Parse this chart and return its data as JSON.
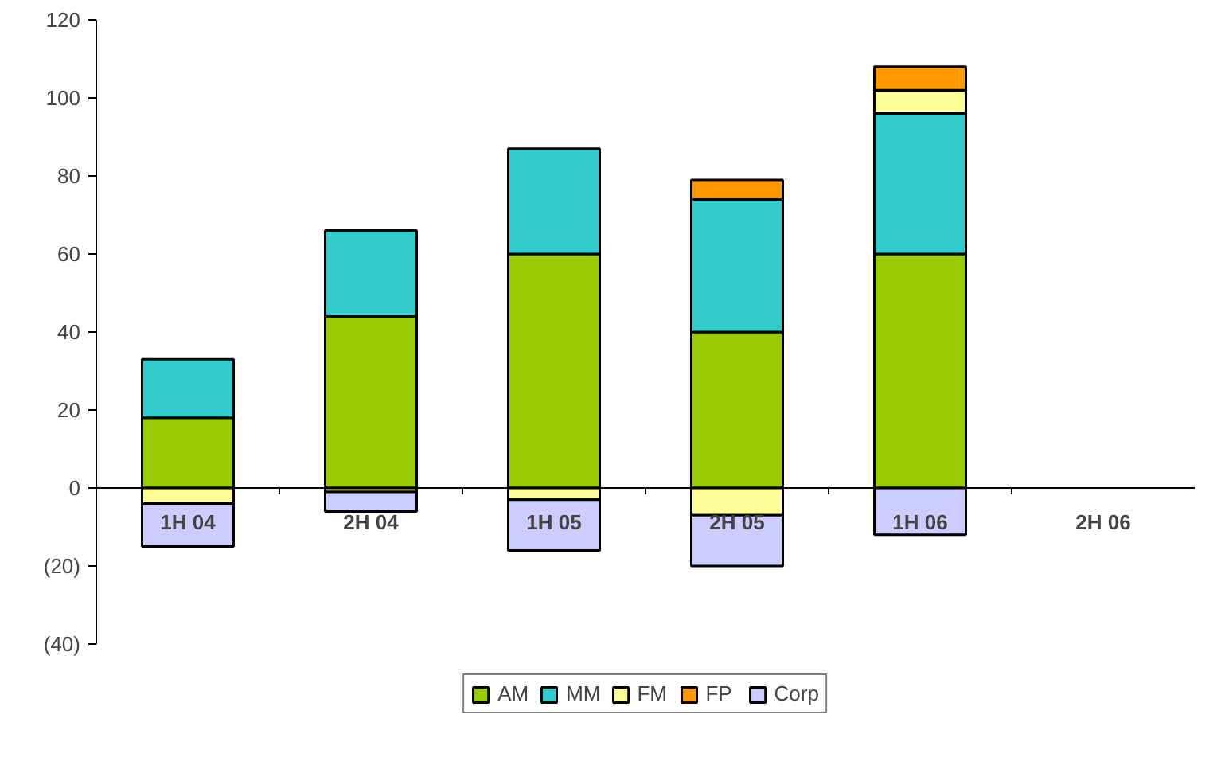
{
  "chart_data": {
    "type": "bar",
    "stacked": true,
    "categories": [
      "1H 04",
      "2H 04",
      "1H 05",
      "2H 05",
      "1H 06",
      "2H 06"
    ],
    "series": [
      {
        "name": "AM",
        "color": "#99cc00",
        "values": [
          18,
          44,
          60,
          40,
          60,
          null
        ]
      },
      {
        "name": "MM",
        "color": "#33cccc",
        "values": [
          15,
          22,
          27,
          34,
          36,
          null
        ]
      },
      {
        "name": "FM",
        "color": "#ffff99",
        "values": [
          -4,
          -1,
          -3,
          -7,
          6,
          null
        ]
      },
      {
        "name": "FP",
        "color": "#ff9900",
        "values": [
          null,
          null,
          null,
          5,
          6,
          null
        ]
      },
      {
        "name": "Corp",
        "color": "#ccccff",
        "values": [
          -11,
          -5,
          -13,
          -13,
          -12,
          null
        ]
      }
    ],
    "ylim": [
      -40,
      120
    ],
    "yticks": [
      {
        "value": -40,
        "label": "(40)"
      },
      {
        "value": -20,
        "label": "(20)"
      },
      0,
      20,
      40,
      60,
      80,
      100,
      120
    ],
    "grid": false,
    "legend": "bottom"
  }
}
